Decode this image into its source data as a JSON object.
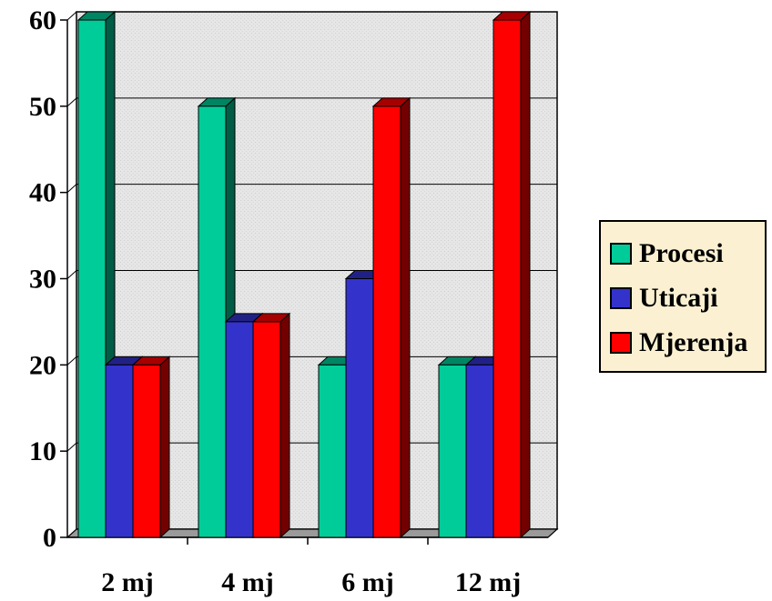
{
  "chart_data": {
    "type": "bar",
    "categories": [
      "2 mj",
      "4 mj",
      "6 mj",
      "12 mj"
    ],
    "series": [
      {
        "name": "Procesi",
        "values": [
          60,
          50,
          20,
          20
        ],
        "color": "#00cc99"
      },
      {
        "name": "Uticaji",
        "values": [
          20,
          25,
          30,
          20
        ],
        "color": "#3333cc"
      },
      {
        "name": "Mjerenja",
        "values": [
          20,
          25,
          50,
          60
        ],
        "color": "#ff0000"
      }
    ],
    "ylim": [
      0,
      60
    ],
    "yticks": [
      "0",
      "10",
      "20",
      "30",
      "40",
      "50",
      "60"
    ],
    "grid": true,
    "legend_position": "right",
    "style": "3d-clustered-column",
    "colors": {
      "wall": "#e3e3e3",
      "floor": "#9a9a9a",
      "legend_background": "#fbf1d2"
    }
  }
}
